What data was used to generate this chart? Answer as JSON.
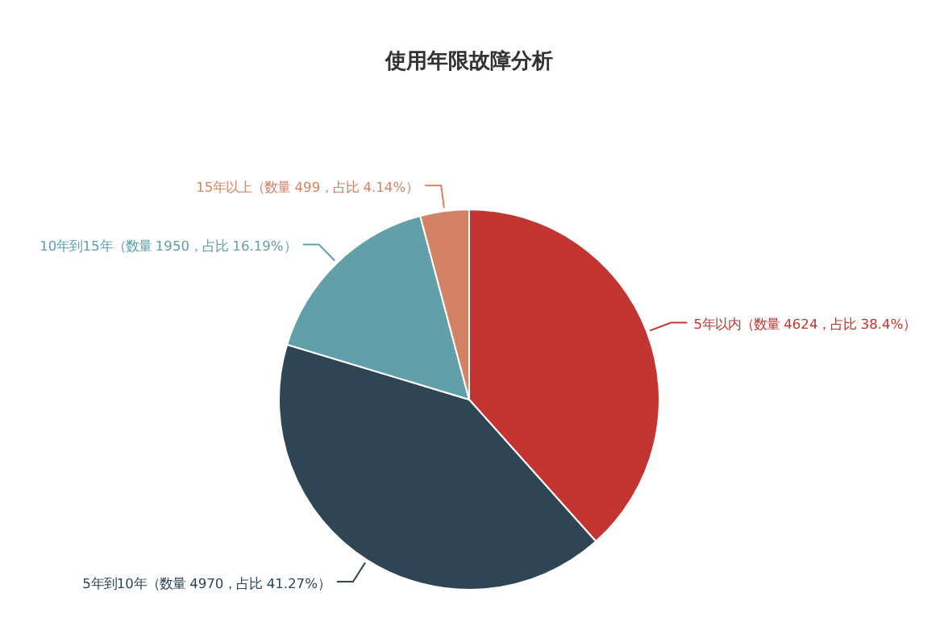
{
  "chart_data": {
    "type": "pie",
    "title": "使用年限故障分析",
    "categories": [
      "5年以内（数量 4624，占比 38.4%）",
      "5年到10年（数量 4970，占比 41.27%）",
      "10年到15年（数量 1950，占比 16.19%）",
      "15年以上（数量 499，占比 4.14%）"
    ],
    "values": [
      4624,
      4970,
      1950,
      499
    ],
    "colors": [
      "#c23531",
      "#2f4554",
      "#61a0a8",
      "#d48265"
    ]
  }
}
